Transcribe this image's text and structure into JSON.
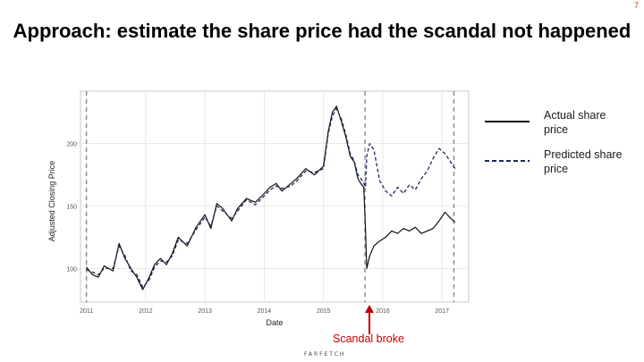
{
  "slide": {
    "number": "7",
    "title": "Approach: estimate the share price had the scandal not happened",
    "annotation": "Scandal broke",
    "logo_text": "FARFETCH",
    "annotation_color": "#c00000"
  },
  "legend": [
    {
      "label": "Actual share price",
      "style": "solid",
      "color": "#000000"
    },
    {
      "label": "Predicted share price",
      "style": "dashed",
      "color": "#1f2a5a"
    }
  ],
  "chart_data": {
    "type": "line",
    "xlabel": "Date",
    "ylabel": "Adjusted Closing Price",
    "xlim": [
      2010.9,
      2017.45
    ],
    "ylim": [
      73,
      242
    ],
    "x_ticks": [
      2011,
      2012,
      2013,
      2014,
      2015,
      2016,
      2017
    ],
    "x_tick_labels": [
      "2011",
      "2012",
      "2013",
      "2014",
      "2015",
      "2016",
      "2017"
    ],
    "y_ticks": [
      100,
      150,
      200
    ],
    "y_tick_labels": [
      "100",
      "150",
      "200"
    ],
    "vertical_markers": [
      2011.0,
      2015.7,
      2017.2
    ],
    "grid": true,
    "series": [
      {
        "name": "Actual share price",
        "x": [
          2011.0,
          2011.1,
          2011.2,
          2011.3,
          2011.45,
          2011.55,
          2011.65,
          2011.75,
          2011.85,
          2011.95,
          2012.05,
          2012.15,
          2012.25,
          2012.35,
          2012.45,
          2012.55,
          2012.7,
          2012.85,
          2013.0,
          2013.1,
          2013.2,
          2013.3,
          2013.45,
          2013.55,
          2013.7,
          2013.85,
          2014.0,
          2014.1,
          2014.2,
          2014.3,
          2014.45,
          2014.55,
          2014.7,
          2014.85,
          2015.0,
          2015.08,
          2015.15,
          2015.22,
          2015.3,
          2015.38,
          2015.45,
          2015.52,
          2015.58,
          2015.63,
          2015.68,
          2015.71,
          2015.73,
          2015.78,
          2015.85,
          2015.95,
          2016.05,
          2016.15,
          2016.25,
          2016.35,
          2016.45,
          2016.55,
          2016.65,
          2016.75,
          2016.85,
          2016.95,
          2017.05,
          2017.15,
          2017.22
        ],
        "values": [
          101,
          95,
          93,
          102,
          98,
          120,
          108,
          100,
          93,
          83,
          92,
          103,
          108,
          103,
          112,
          125,
          118,
          133,
          143,
          132,
          152,
          148,
          138,
          148,
          156,
          153,
          160,
          165,
          168,
          162,
          168,
          172,
          180,
          175,
          182,
          210,
          225,
          230,
          218,
          205,
          190,
          185,
          172,
          168,
          165,
          130,
          100,
          110,
          118,
          122,
          125,
          130,
          128,
          132,
          130,
          133,
          128,
          130,
          132,
          138,
          145,
          140,
          137
        ]
      },
      {
        "name": "Predicted share price",
        "x": [
          2011.0,
          2011.1,
          2011.2,
          2011.3,
          2011.45,
          2011.55,
          2011.65,
          2011.75,
          2011.85,
          2011.95,
          2012.05,
          2012.15,
          2012.25,
          2012.35,
          2012.45,
          2012.55,
          2012.7,
          2012.85,
          2013.0,
          2013.1,
          2013.2,
          2013.3,
          2013.45,
          2013.55,
          2013.7,
          2013.85,
          2014.0,
          2014.1,
          2014.2,
          2014.3,
          2014.45,
          2014.55,
          2014.7,
          2014.85,
          2015.0,
          2015.08,
          2015.15,
          2015.22,
          2015.3,
          2015.38,
          2015.45,
          2015.52,
          2015.58,
          2015.63,
          2015.68,
          2015.71,
          2015.73,
          2015.78,
          2015.85,
          2015.95,
          2016.05,
          2016.15,
          2016.25,
          2016.35,
          2016.45,
          2016.55,
          2016.65,
          2016.75,
          2016.85,
          2016.95,
          2017.05,
          2017.15,
          2017.22
        ],
        "values": [
          99,
          97,
          95,
          100,
          100,
          118,
          110,
          98,
          95,
          85,
          90,
          101,
          106,
          105,
          110,
          123,
          120,
          131,
          141,
          134,
          150,
          146,
          140,
          146,
          155,
          151,
          158,
          163,
          166,
          164,
          166,
          170,
          178,
          177,
          180,
          208,
          222,
          228,
          220,
          207,
          192,
          186,
          175,
          172,
          168,
          165,
          190,
          200,
          195,
          170,
          162,
          158,
          165,
          160,
          167,
          163,
          172,
          178,
          188,
          196,
          192,
          185,
          180
        ]
      }
    ]
  }
}
